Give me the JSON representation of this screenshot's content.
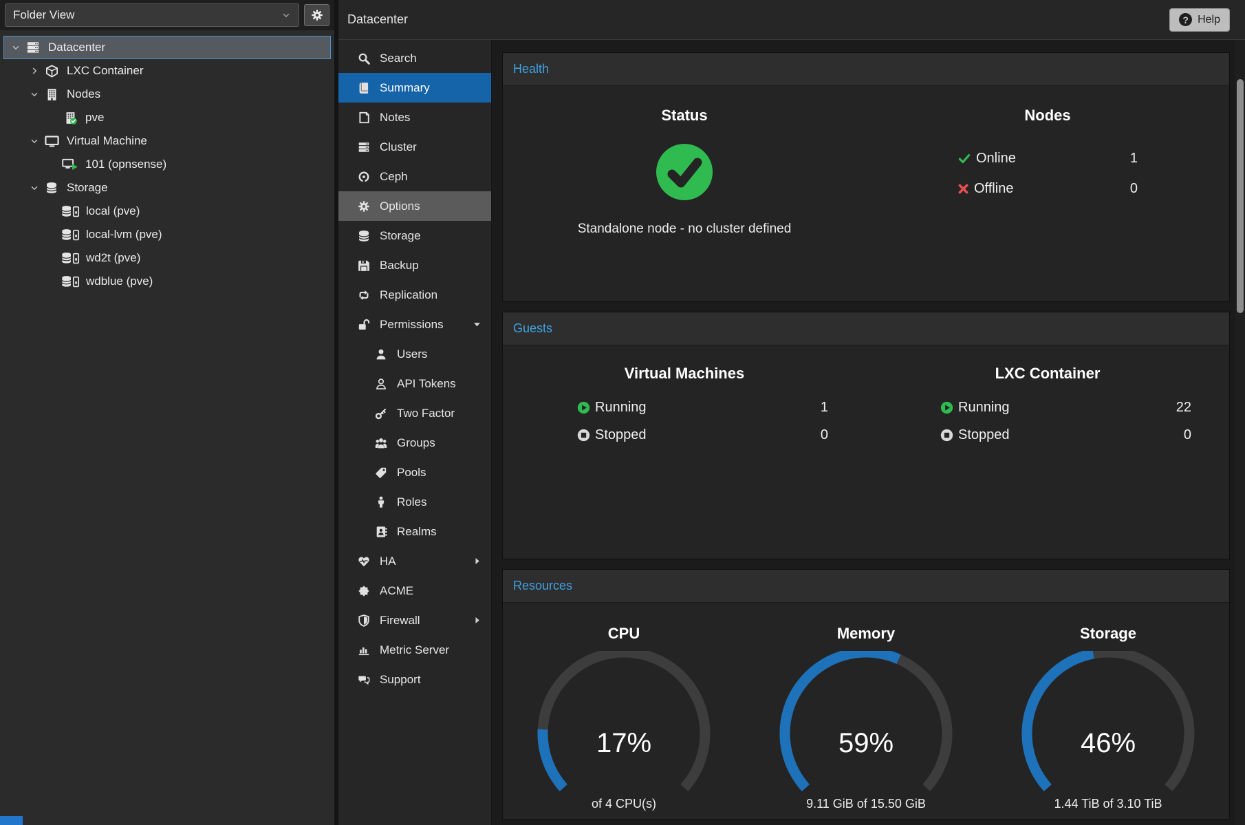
{
  "header": {
    "title": "Datacenter",
    "help_label": "Help"
  },
  "sidebar": {
    "view_selector": {
      "value": "Folder View"
    },
    "tree": [
      {
        "label": "Datacenter",
        "icon": "datacenter",
        "level": 0,
        "expander": "down",
        "selected": true
      },
      {
        "label": "LXC Container",
        "icon": "cube",
        "level": 1,
        "expander": "right"
      },
      {
        "label": "Nodes",
        "icon": "building",
        "level": 1,
        "expander": "down"
      },
      {
        "label": "pve",
        "icon": "node-online",
        "level": 2,
        "expander": "none"
      },
      {
        "label": "Virtual Machine",
        "icon": "monitor",
        "level": 1,
        "expander": "down"
      },
      {
        "label": "101 (opnsense)",
        "icon": "vm-running",
        "level": 2,
        "expander": "none"
      },
      {
        "label": "Storage",
        "icon": "database",
        "level": 1,
        "expander": "down"
      },
      {
        "label": "local (pve)",
        "icon": "storage-item",
        "level": 2,
        "expander": "none"
      },
      {
        "label": "local-lvm (pve)",
        "icon": "storage-item",
        "level": 2,
        "expander": "none"
      },
      {
        "label": "wd2t (pve)",
        "icon": "storage-item",
        "level": 2,
        "expander": "none"
      },
      {
        "label": "wdblue (pve)",
        "icon": "storage-item",
        "level": 2,
        "expander": "none"
      }
    ]
  },
  "menu": {
    "items": [
      {
        "label": "Search",
        "icon": "search"
      },
      {
        "label": "Summary",
        "icon": "book",
        "selected": true
      },
      {
        "label": "Notes",
        "icon": "note"
      },
      {
        "label": "Cluster",
        "icon": "cluster"
      },
      {
        "label": "Ceph",
        "icon": "ceph"
      },
      {
        "label": "Options",
        "icon": "gear",
        "highlight": true
      },
      {
        "label": "Storage",
        "icon": "database"
      },
      {
        "label": "Backup",
        "icon": "floppy"
      },
      {
        "label": "Replication",
        "icon": "replication"
      },
      {
        "label": "Permissions",
        "icon": "unlock",
        "expand": "down"
      },
      {
        "label": "Users",
        "icon": "user",
        "indent": true
      },
      {
        "label": "API Tokens",
        "icon": "user-o",
        "indent": true
      },
      {
        "label": "Two Factor",
        "icon": "key",
        "indent": true
      },
      {
        "label": "Groups",
        "icon": "group",
        "indent": true
      },
      {
        "label": "Pools",
        "icon": "tag",
        "indent": true
      },
      {
        "label": "Roles",
        "icon": "person",
        "indent": true
      },
      {
        "label": "Realms",
        "icon": "address-book",
        "indent": true
      },
      {
        "label": "HA",
        "icon": "heartbeat",
        "expand": "right"
      },
      {
        "label": "ACME",
        "icon": "seal"
      },
      {
        "label": "Firewall",
        "icon": "shield",
        "expand": "right"
      },
      {
        "label": "Metric Server",
        "icon": "chart"
      },
      {
        "label": "Support",
        "icon": "comments"
      }
    ]
  },
  "health": {
    "title": "Health",
    "status_heading": "Status",
    "status_text": "Standalone node - no cluster defined",
    "nodes_heading": "Nodes",
    "node_rows": [
      {
        "label": "Online",
        "value": "1",
        "icon": "check"
      },
      {
        "label": "Offline",
        "value": "0",
        "icon": "cross"
      }
    ]
  },
  "guests": {
    "title": "Guests",
    "columns": [
      {
        "heading": "Virtual Machines",
        "rows": [
          {
            "label": "Running",
            "value": "1",
            "icon": "play"
          },
          {
            "label": "Stopped",
            "value": "0",
            "icon": "stop"
          }
        ]
      },
      {
        "heading": "LXC Container",
        "rows": [
          {
            "label": "Running",
            "value": "22",
            "icon": "play"
          },
          {
            "label": "Stopped",
            "value": "0",
            "icon": "stop"
          }
        ]
      }
    ]
  },
  "resources": {
    "title": "Resources",
    "gauges": [
      {
        "title": "CPU",
        "percent": 17,
        "detail": "of 4 CPU(s)"
      },
      {
        "title": "Memory",
        "percent": 59,
        "detail": "9.11 GiB of 15.50 GiB"
      },
      {
        "title": "Storage",
        "percent": 46,
        "detail": "1.44 TiB of 3.10 TiB"
      }
    ]
  },
  "colors": {
    "accent_blue": "#1563a8",
    "title_blue": "#3fa1e3",
    "ok_green": "#2fbb4f",
    "error_red": "#e8504f",
    "gauge_blue": "#1e72ba",
    "gauge_track": "#3d3d3d"
  }
}
